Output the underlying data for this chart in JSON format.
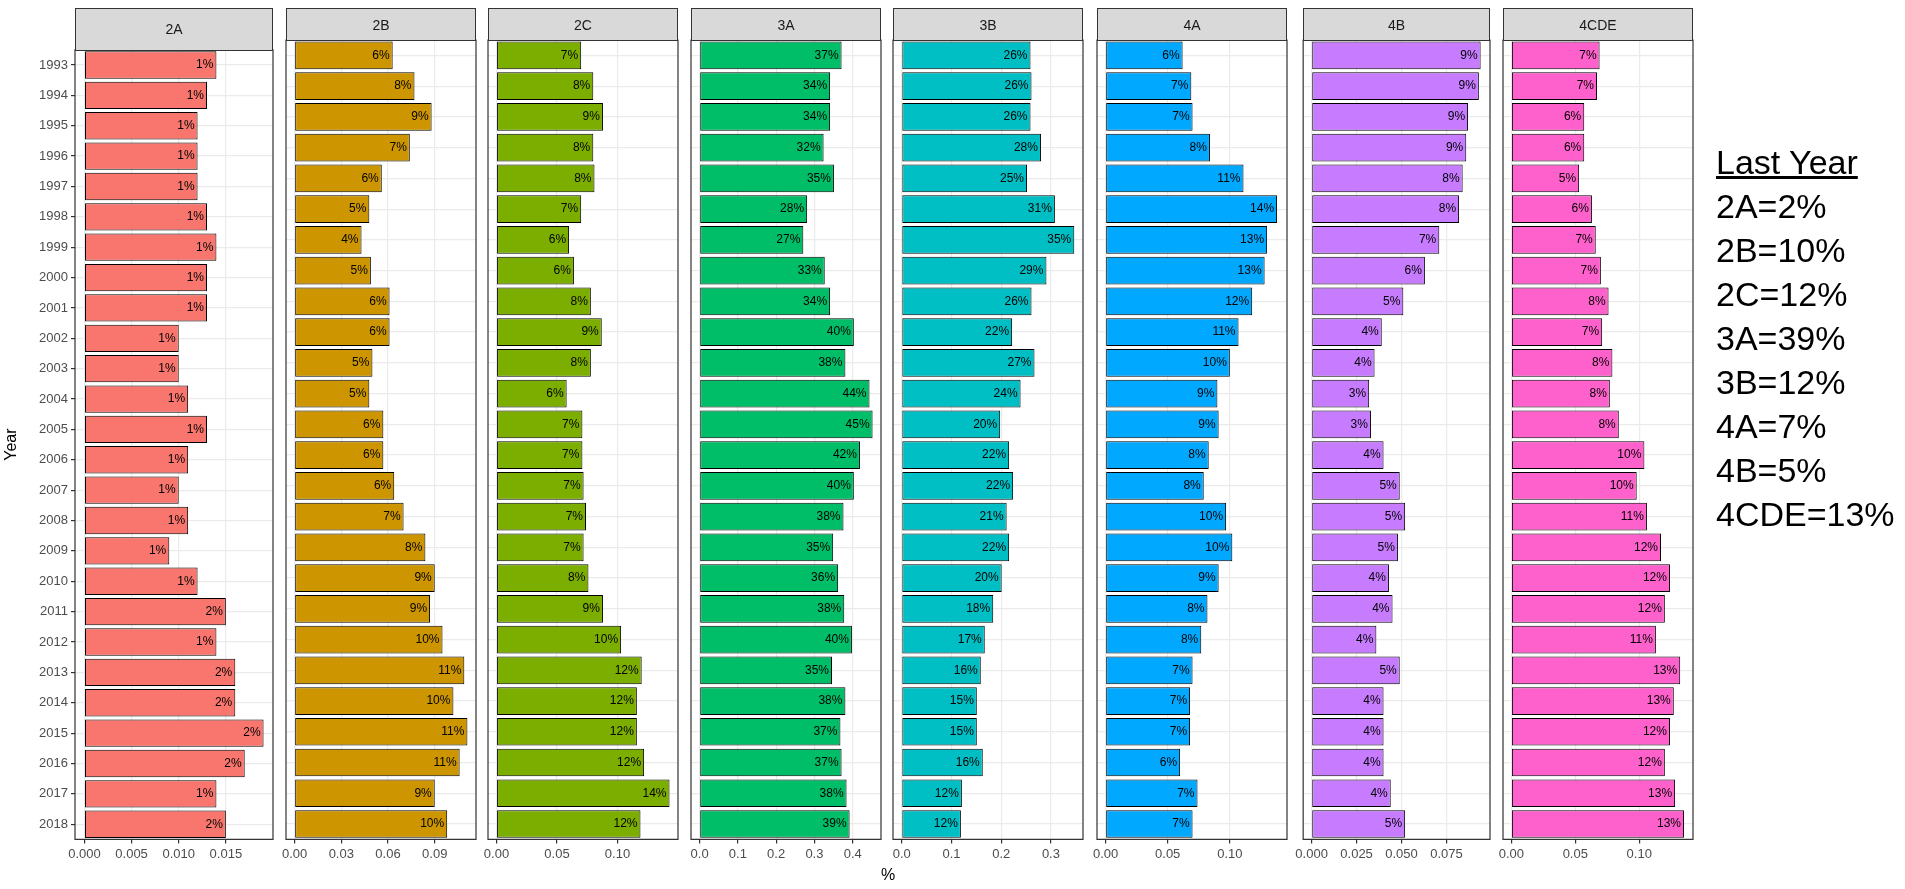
{
  "chart_data": [
    {
      "type": "bar",
      "orientation": "horizontal",
      "title": "2A",
      "ylabel": "Year",
      "categories": [
        "1993",
        "1994",
        "1995",
        "1996",
        "1997",
        "1998",
        "1999",
        "2000",
        "2001",
        "2002",
        "2003",
        "2004",
        "2005",
        "2006",
        "2007",
        "2008",
        "2009",
        "2010",
        "2011",
        "2012",
        "2013",
        "2014",
        "2015",
        "2016",
        "2017",
        "2018"
      ],
      "values": [
        0.014,
        0.013,
        0.012,
        0.012,
        0.012,
        0.013,
        0.014,
        0.013,
        0.013,
        0.01,
        0.01,
        0.011,
        0.013,
        0.011,
        0.01,
        0.011,
        0.009,
        0.012,
        0.015,
        0.014,
        0.016,
        0.016,
        0.019,
        0.017,
        0.014,
        0.015
      ],
      "value_labels": [
        "1%",
        "1%",
        "1%",
        "1%",
        "1%",
        "1%",
        "1%",
        "1%",
        "1%",
        "1%",
        "1%",
        "1%",
        "1%",
        "1%",
        "1%",
        "1%",
        "1%",
        "1%",
        "2%",
        "1%",
        "2%",
        "2%",
        "2%",
        "2%",
        "1%",
        "2%"
      ],
      "color": "#f8766d",
      "xlim": [
        -0.001,
        0.02
      ],
      "xticks": [
        {
          "value": 0,
          "label": "0.000"
        },
        {
          "value": 0.005,
          "label": "0.005"
        },
        {
          "value": 0.01,
          "label": "0.010"
        },
        {
          "value": 0.015,
          "label": "0.015"
        }
      ],
      "grid": true
    },
    {
      "type": "bar",
      "orientation": "horizontal",
      "title": "2B",
      "categories": [
        "1993",
        "1994",
        "1995",
        "1996",
        "1997",
        "1998",
        "1999",
        "2000",
        "2001",
        "2002",
        "2003",
        "2004",
        "2005",
        "2006",
        "2007",
        "2008",
        "2009",
        "2010",
        "2011",
        "2012",
        "2013",
        "2014",
        "2015",
        "2016",
        "2017",
        "2018"
      ],
      "values": [
        0.063,
        0.077,
        0.088,
        0.074,
        0.056,
        0.048,
        0.043,
        0.049,
        0.061,
        0.061,
        0.05,
        0.048,
        0.057,
        0.057,
        0.064,
        0.07,
        0.084,
        0.09,
        0.087,
        0.095,
        0.109,
        0.102,
        0.111,
        0.106,
        0.09,
        0.098
      ],
      "value_labels": [
        "6%",
        "8%",
        "9%",
        "7%",
        "6%",
        "5%",
        "4%",
        "5%",
        "6%",
        "6%",
        "5%",
        "5%",
        "6%",
        "6%",
        "6%",
        "7%",
        "8%",
        "9%",
        "9%",
        "10%",
        "11%",
        "10%",
        "11%",
        "11%",
        "9%",
        "10%"
      ],
      "color": "#cd9600",
      "xlim": [
        -0.0055,
        0.1165
      ],
      "xticks": [
        {
          "value": 0,
          "label": "0.00"
        },
        {
          "value": 0.03,
          "label": "0.03"
        },
        {
          "value": 0.06,
          "label": "0.06"
        },
        {
          "value": 0.09,
          "label": "0.09"
        }
      ],
      "grid": true,
      "tick_labels": "x"
    },
    {
      "type": "bar",
      "orientation": "horizontal",
      "title": "2C",
      "categories": [
        "1993",
        "1994",
        "1995",
        "1996",
        "1997",
        "1998",
        "1999",
        "2000",
        "2001",
        "2002",
        "2003",
        "2004",
        "2005",
        "2006",
        "2007",
        "2008",
        "2009",
        "2010",
        "2011",
        "2012",
        "2013",
        "2014",
        "2015",
        "2016",
        "2017",
        "2018"
      ],
      "values": [
        0.07,
        0.08,
        0.088,
        0.08,
        0.081,
        0.07,
        0.06,
        0.064,
        0.078,
        0.087,
        0.078,
        0.058,
        0.071,
        0.071,
        0.072,
        0.074,
        0.072,
        0.076,
        0.088,
        0.103,
        0.12,
        0.116,
        0.116,
        0.122,
        0.143,
        0.119
      ],
      "value_labels": [
        "7%",
        "8%",
        "9%",
        "8%",
        "8%",
        "7%",
        "6%",
        "6%",
        "8%",
        "9%",
        "8%",
        "6%",
        "7%",
        "7%",
        "7%",
        "7%",
        "7%",
        "8%",
        "9%",
        "10%",
        "12%",
        "12%",
        "12%",
        "12%",
        "14%",
        "12%"
      ],
      "color": "#7cae00",
      "xlim": [
        -0.007,
        0.15
      ],
      "xticks": [
        {
          "value": 0,
          "label": "0.00"
        },
        {
          "value": 0.05,
          "label": "0.05"
        },
        {
          "value": 0.1,
          "label": "0.10"
        }
      ],
      "grid": true,
      "tick_labels": "x"
    },
    {
      "type": "bar",
      "orientation": "horizontal",
      "title": "3A",
      "xlabel": "%",
      "categories": [
        "1993",
        "1994",
        "1995",
        "1996",
        "1997",
        "1998",
        "1999",
        "2000",
        "2001",
        "2002",
        "2003",
        "2004",
        "2005",
        "2006",
        "2007",
        "2008",
        "2009",
        "2010",
        "2011",
        "2012",
        "2013",
        "2014",
        "2015",
        "2016",
        "2017",
        "2018"
      ],
      "values": [
        0.371,
        0.341,
        0.341,
        0.324,
        0.351,
        0.281,
        0.271,
        0.327,
        0.341,
        0.403,
        0.381,
        0.444,
        0.452,
        0.419,
        0.403,
        0.376,
        0.349,
        0.362,
        0.378,
        0.398,
        0.346,
        0.381,
        0.368,
        0.371,
        0.384,
        0.392
      ],
      "value_labels": [
        "37%",
        "34%",
        "34%",
        "32%",
        "35%",
        "28%",
        "27%",
        "33%",
        "34%",
        "40%",
        "38%",
        "44%",
        "45%",
        "42%",
        "40%",
        "38%",
        "35%",
        "36%",
        "38%",
        "40%",
        "35%",
        "38%",
        "37%",
        "37%",
        "38%",
        "39%"
      ],
      "color": "#00be67",
      "xlim": [
        -0.0225,
        0.474
      ],
      "xticks": [
        {
          "value": 0,
          "label": "0.0"
        },
        {
          "value": 0.1,
          "label": "0.1"
        },
        {
          "value": 0.2,
          "label": "0.2"
        },
        {
          "value": 0.3,
          "label": "0.3"
        },
        {
          "value": 0.4,
          "label": "0.4"
        }
      ],
      "grid": true,
      "tick_labels": "x"
    },
    {
      "type": "bar",
      "orientation": "horizontal",
      "title": "3B",
      "categories": [
        "1993",
        "1994",
        "1995",
        "1996",
        "1997",
        "1998",
        "1999",
        "2000",
        "2001",
        "2002",
        "2003",
        "2004",
        "2005",
        "2006",
        "2007",
        "2008",
        "2009",
        "2010",
        "2011",
        "2012",
        "2013",
        "2014",
        "2015",
        "2016",
        "2017",
        "2018"
      ],
      "values": [
        0.259,
        0.261,
        0.259,
        0.28,
        0.252,
        0.308,
        0.347,
        0.291,
        0.261,
        0.222,
        0.267,
        0.239,
        0.198,
        0.216,
        0.224,
        0.211,
        0.216,
        0.201,
        0.184,
        0.167,
        0.159,
        0.151,
        0.151,
        0.163,
        0.121,
        0.119
      ],
      "value_labels": [
        "26%",
        "26%",
        "26%",
        "28%",
        "25%",
        "31%",
        "35%",
        "29%",
        "26%",
        "22%",
        "27%",
        "24%",
        "20%",
        "22%",
        "22%",
        "21%",
        "22%",
        "20%",
        "18%",
        "17%",
        "16%",
        "15%",
        "15%",
        "16%",
        "12%",
        "12%"
      ],
      "color": "#00bfc4",
      "xlim": [
        -0.0175,
        0.3645
      ],
      "xticks": [
        {
          "value": 0,
          "label": "0.0"
        },
        {
          "value": 0.1,
          "label": "0.1"
        },
        {
          "value": 0.2,
          "label": "0.2"
        },
        {
          "value": 0.3,
          "label": "0.3"
        }
      ],
      "grid": true,
      "tick_labels": "x"
    },
    {
      "type": "bar",
      "orientation": "horizontal",
      "title": "4A",
      "categories": [
        "1993",
        "1994",
        "1995",
        "1996",
        "1997",
        "1998",
        "1999",
        "2000",
        "2001",
        "2002",
        "2003",
        "2004",
        "2005",
        "2006",
        "2007",
        "2008",
        "2009",
        "2010",
        "2011",
        "2012",
        "2013",
        "2014",
        "2015",
        "2016",
        "2017",
        "2018"
      ],
      "values": [
        0.062,
        0.069,
        0.07,
        0.084,
        0.111,
        0.138,
        0.13,
        0.128,
        0.118,
        0.107,
        0.1,
        0.09,
        0.091,
        0.083,
        0.079,
        0.097,
        0.102,
        0.091,
        0.082,
        0.077,
        0.07,
        0.068,
        0.068,
        0.06,
        0.074,
        0.07
      ],
      "value_labels": [
        "6%",
        "7%",
        "7%",
        "8%",
        "11%",
        "14%",
        "13%",
        "13%",
        "12%",
        "11%",
        "10%",
        "9%",
        "9%",
        "8%",
        "8%",
        "10%",
        "10%",
        "9%",
        "8%",
        "8%",
        "7%",
        "7%",
        "7%",
        "6%",
        "7%",
        "7%"
      ],
      "color": "#00a9ff",
      "xlim": [
        -0.0069,
        0.146
      ],
      "xticks": [
        {
          "value": 0,
          "label": "0.00"
        },
        {
          "value": 0.05,
          "label": "0.05"
        },
        {
          "value": 0.1,
          "label": "0.10"
        }
      ],
      "grid": true,
      "tick_labels": "x"
    },
    {
      "type": "bar",
      "orientation": "horizontal",
      "title": "4B",
      "categories": [
        "1993",
        "1994",
        "1995",
        "1996",
        "1997",
        "1998",
        "1999",
        "2000",
        "2001",
        "2002",
        "2003",
        "2004",
        "2005",
        "2006",
        "2007",
        "2008",
        "2009",
        "2010",
        "2011",
        "2012",
        "2013",
        "2014",
        "2015",
        "2016",
        "2017",
        "2018"
      ],
      "values": [
        0.094,
        0.093,
        0.087,
        0.086,
        0.084,
        0.082,
        0.071,
        0.063,
        0.051,
        0.039,
        0.035,
        0.032,
        0.033,
        0.04,
        0.049,
        0.052,
        0.048,
        0.043,
        0.045,
        0.036,
        0.049,
        0.04,
        0.04,
        0.04,
        0.044,
        0.052
      ],
      "value_labels": [
        "9%",
        "9%",
        "9%",
        "9%",
        "8%",
        "8%",
        "7%",
        "6%",
        "5%",
        "4%",
        "4%",
        "3%",
        "3%",
        "4%",
        "5%",
        "5%",
        "5%",
        "4%",
        "4%",
        "4%",
        "5%",
        "4%",
        "4%",
        "4%",
        "4%",
        "5%"
      ],
      "color": "#c77cff",
      "xlim": [
        -0.0047,
        0.0992
      ],
      "xticks": [
        {
          "value": 0,
          "label": "0.000"
        },
        {
          "value": 0.025,
          "label": "0.025"
        },
        {
          "value": 0.05,
          "label": "0.050"
        },
        {
          "value": 0.075,
          "label": "0.075"
        }
      ],
      "grid": true,
      "tick_labels": "x"
    },
    {
      "type": "bar",
      "orientation": "horizontal",
      "title": "4CDE",
      "categories": [
        "1993",
        "1994",
        "1995",
        "1996",
        "1997",
        "1998",
        "1999",
        "2000",
        "2001",
        "2002",
        "2003",
        "2004",
        "2005",
        "2006",
        "2007",
        "2008",
        "2009",
        "2010",
        "2011",
        "2012",
        "2013",
        "2014",
        "2015",
        "2016",
        "2017",
        "2018"
      ],
      "values": [
        0.069,
        0.067,
        0.057,
        0.057,
        0.053,
        0.063,
        0.066,
        0.07,
        0.076,
        0.071,
        0.079,
        0.077,
        0.084,
        0.104,
        0.098,
        0.106,
        0.117,
        0.124,
        0.12,
        0.113,
        0.132,
        0.127,
        0.124,
        0.12,
        0.128,
        0.135
      ],
      "value_labels": [
        "7%",
        "7%",
        "6%",
        "6%",
        "5%",
        "6%",
        "7%",
        "7%",
        "8%",
        "7%",
        "8%",
        "8%",
        "8%",
        "10%",
        "10%",
        "11%",
        "12%",
        "12%",
        "12%",
        "11%",
        "13%",
        "13%",
        "12%",
        "12%",
        "13%",
        "13%"
      ],
      "color": "#ff61cc",
      "xlim": [
        -0.0065,
        0.142
      ],
      "xticks": [
        {
          "value": 0,
          "label": "0.00"
        },
        {
          "value": 0.05,
          "label": "0.05"
        },
        {
          "value": 0.1,
          "label": "0.10"
        }
      ],
      "grid": true,
      "tick_labels": "x"
    },
    {
      "type": "other",
      "title": "Last Year",
      "annotations": [
        "2A=2%",
        "2B=10%",
        "2C=12%",
        "3A=39%",
        "3B=12%",
        "4A=7%",
        "4B=5%",
        "4CDE=13%"
      ]
    }
  ]
}
